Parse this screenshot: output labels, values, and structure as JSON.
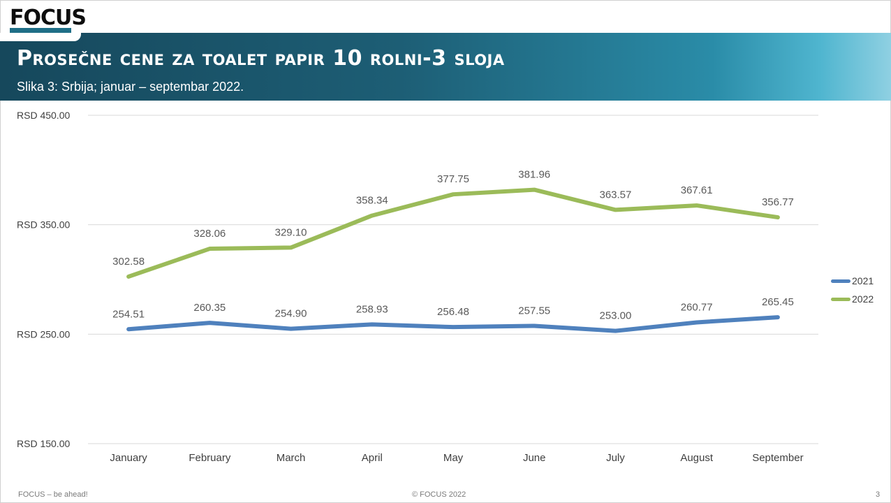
{
  "logo": {
    "text": "FOCUS"
  },
  "header": {
    "title": "Prosečne cene za toalet papir  10 rolni-3 sloja",
    "subtitle": "Slika 3: Srbija; januar – septembar 2022."
  },
  "footer": {
    "left": "FOCUS – be ahead!",
    "center": "© FOCUS 2022",
    "page": "3"
  },
  "chart_data": {
    "type": "line",
    "categories": [
      "January",
      "February",
      "March",
      "April",
      "May",
      "June",
      "July",
      "August",
      "September"
    ],
    "series": [
      {
        "name": "2021",
        "color": "#4f81bd",
        "values": [
          254.51,
          260.35,
          254.9,
          258.93,
          256.48,
          257.55,
          253.0,
          260.77,
          265.45
        ]
      },
      {
        "name": "2022",
        "color": "#9bbb59",
        "values": [
          302.58,
          328.06,
          329.1,
          358.34,
          377.75,
          381.96,
          363.57,
          367.61,
          356.77
        ]
      }
    ],
    "ylim": [
      150,
      450
    ],
    "yticks": [
      150,
      250,
      350,
      450
    ],
    "ytick_labels": [
      "RSD 150.00",
      "RSD 250.00",
      "RSD 350.00",
      "RSD 450.00"
    ],
    "grid": true,
    "legend": "right"
  }
}
